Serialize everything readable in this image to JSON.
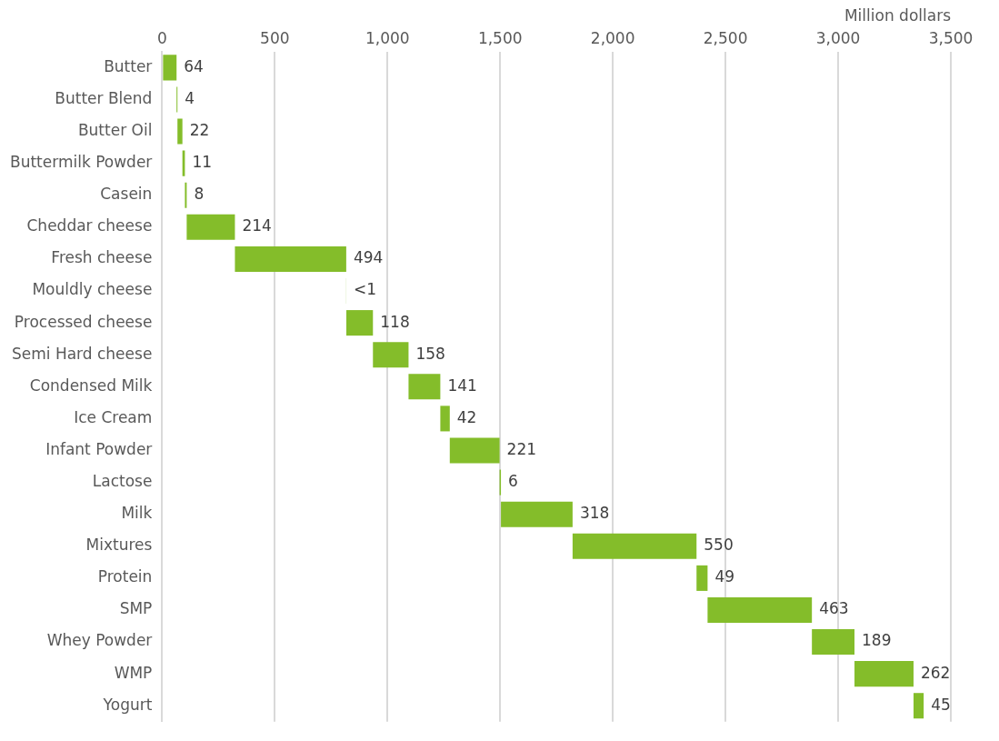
{
  "chart_data": {
    "type": "bar",
    "orientation": "horizontal",
    "xlabel": "Million dollars",
    "categories": [
      "Butter",
      "Butter Blend",
      "Butter Oil",
      "Buttermilk Powder",
      "Casein",
      "Cheddar cheese",
      "Fresh cheese",
      "Mouldly cheese",
      "Processed cheese",
      "Semi Hard cheese",
      "Condensed Milk",
      "Ice Cream",
      "Infant Powder",
      "Lactose",
      "Milk",
      "Mixtures",
      "Protein",
      "SMP",
      "Whey Powder",
      "WMP",
      "Yogurt"
    ],
    "values": [
      64,
      4,
      22,
      11,
      8,
      214,
      494,
      0.5,
      118,
      158,
      141,
      42,
      221,
      6,
      318,
      550,
      49,
      463,
      189,
      262,
      45
    ],
    "base": [
      0,
      64,
      68,
      90,
      101,
      109,
      323,
      817,
      817.5,
      935.5,
      1093.5,
      1234.5,
      1276.5,
      1497.5,
      1503.5,
      1821.5,
      2371.5,
      2420.5,
      2883.5,
      3072.5,
      3334.5
    ],
    "value_labels": [
      "64",
      "4",
      "22",
      "11",
      "8",
      "214",
      "494",
      "<1",
      "118",
      "158",
      "141",
      "42",
      "221",
      "6",
      "318",
      "550",
      "49",
      "463",
      "189",
      "262",
      "45"
    ],
    "color": "#84bd2a",
    "xlim": [
      0,
      3500
    ],
    "xticks": [
      0,
      500,
      {
        "value": 1000,
        "label": "1,000"
      },
      {
        "value": 1500,
        "label": "1,500"
      },
      {
        "value": 2000,
        "label": "2,000"
      },
      {
        "value": 2500,
        "label": "2,500"
      },
      {
        "value": 3000,
        "label": "3,000"
      },
      {
        "value": 3500,
        "label": "3,500"
      }
    ],
    "grid": "x",
    "legend": false
  }
}
